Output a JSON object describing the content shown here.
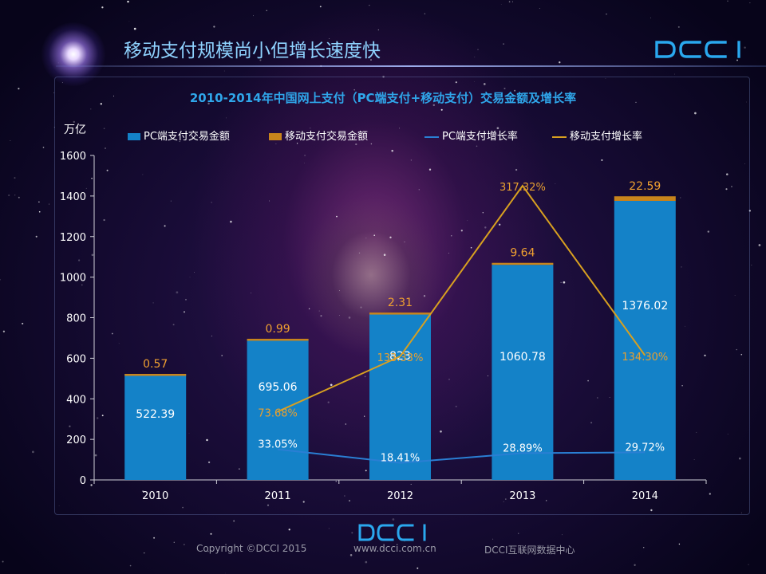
{
  "header": {
    "title": "移动支付规模尚小但增长速度快",
    "logo_text": "DCCI"
  },
  "colors": {
    "pc_bar": "#1482c8",
    "mobile_bar": "#c8841c",
    "pc_line": "#2a7fd4",
    "mobile_line": "#d8a020",
    "title": "#2fa6ea",
    "rate_label": "#e8a030"
  },
  "chart_data": {
    "type": "bar",
    "title": "2010-2014年中国网上支付（PC端支付+移动支付）交易金额及增长率",
    "ylabel": "万亿",
    "ylim": [
      0,
      1600
    ],
    "yticks": [
      "0",
      "200",
      "400",
      "600",
      "800",
      "1000",
      "1200",
      "1400",
      "1600"
    ],
    "categories": [
      "2010",
      "2011",
      "2012",
      "2013",
      "2014"
    ],
    "legend_position": "top",
    "series": [
      {
        "name": "PC端支付交易金额",
        "kind": "bar",
        "values": [
          522.39,
          695.06,
          823,
          1060.78,
          1376.02
        ],
        "labels": [
          "522.39",
          "695.06",
          "823",
          "1060.78",
          "1376.02"
        ]
      },
      {
        "name": "移动支付交易金额",
        "kind": "bar",
        "values": [
          0.57,
          0.99,
          2.31,
          9.64,
          22.59
        ],
        "labels": [
          "0.57",
          "0.99",
          "2.31",
          "9.64",
          "22.59"
        ]
      },
      {
        "name": "PC端支付增长率",
        "kind": "line",
        "values": [
          null,
          33.05,
          18.41,
          28.89,
          29.72
        ],
        "labels": [
          "",
          "33.05%",
          "18.41%",
          "28.89%",
          "29.72%"
        ]
      },
      {
        "name": "移动支付增长率",
        "kind": "line",
        "values": [
          null,
          73.68,
          133.33,
          317.32,
          134.3
        ],
        "labels": [
          "",
          "73.68%",
          "133.33%",
          "317.32%",
          "134.30%"
        ]
      }
    ]
  },
  "footer": {
    "copyright": "Copyright ©DCCI 2015",
    "url": "www.dcci.com.cn",
    "org": "DCCI互联网数据中心",
    "logo_text": "DCCI"
  }
}
